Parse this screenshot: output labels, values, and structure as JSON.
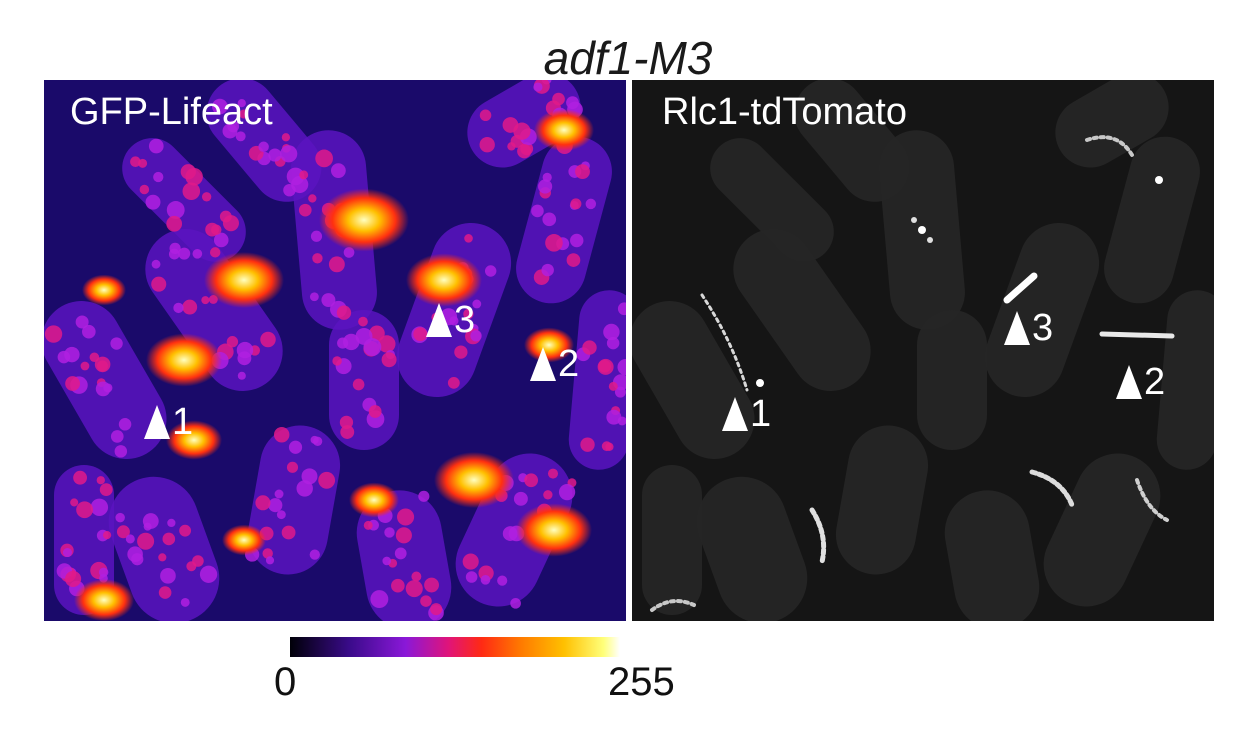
{
  "title": "adf1-M3",
  "panels": [
    {
      "label": "GFP-Lifeact",
      "markers": [
        "1",
        "2",
        "3"
      ]
    },
    {
      "label": "Rlc1-tdTomato",
      "markers": [
        "1",
        "2",
        "3"
      ]
    }
  ],
  "colorbar": {
    "min_label": "0",
    "max_label": "255",
    "colormap": "fire"
  },
  "colors": {
    "left_background": "#1a0a6a",
    "right_background": "#151515",
    "marker": "#ffffff"
  }
}
